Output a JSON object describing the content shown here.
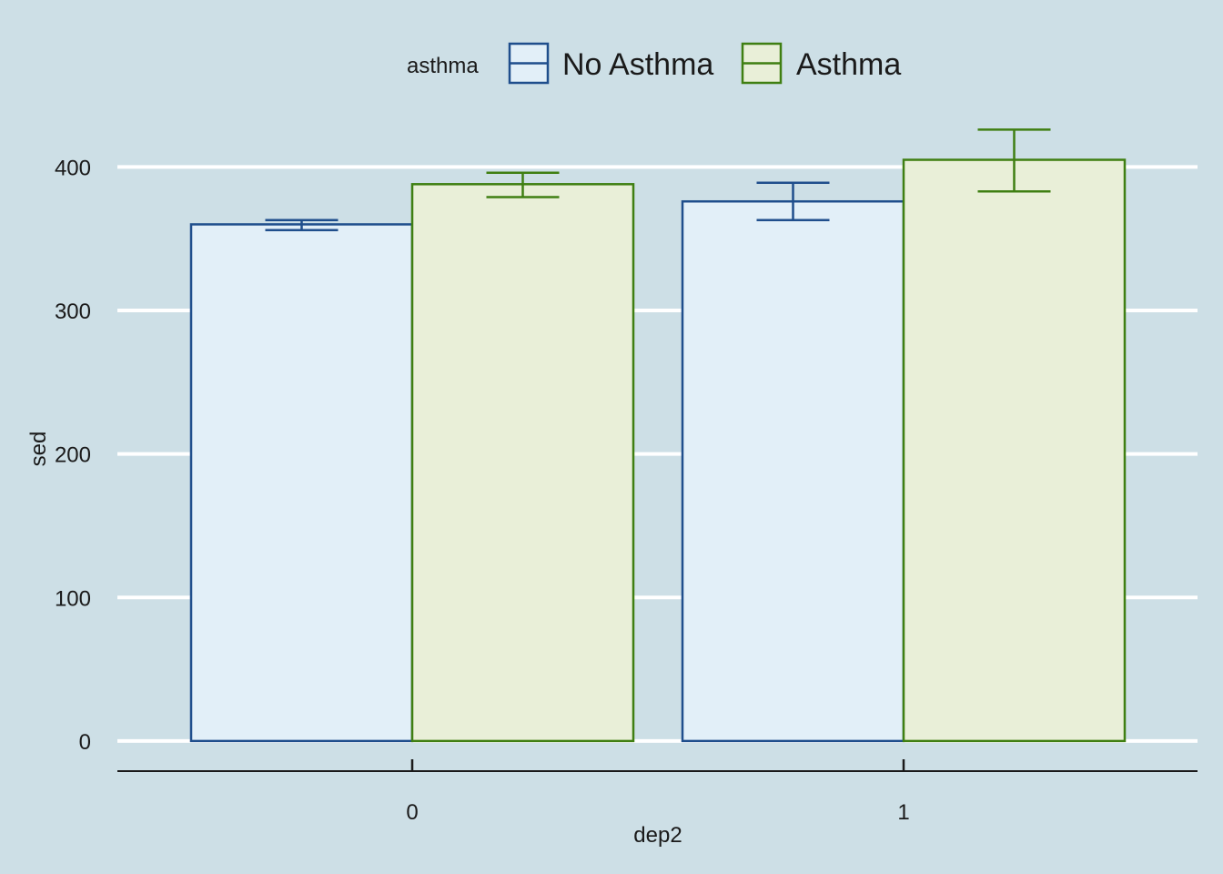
{
  "colors": {
    "background": "#cddfe6",
    "gridline": "#ffffff",
    "axis": "#1a1a1a",
    "no_asthma_stroke": "#1f4e8c",
    "no_asthma_fill": "#e2eff8",
    "asthma_stroke": "#3f7f12",
    "asthma_fill": "#e9efd8"
  },
  "legend": {
    "title": "asthma",
    "items": [
      "No Asthma",
      "Asthma"
    ]
  },
  "chart_data": {
    "type": "bar",
    "title": "",
    "xlabel": "dep2",
    "ylabel": "sed",
    "categories": [
      "0",
      "1"
    ],
    "ylim": [
      -21,
      425
    ],
    "yticks": [
      0,
      100,
      200,
      300,
      400
    ],
    "grid": true,
    "legend_position": "top",
    "series": [
      {
        "name": "No Asthma",
        "values": [
          360,
          376
        ],
        "err_low": [
          356,
          363
        ],
        "err_high": [
          363,
          389
        ]
      },
      {
        "name": "Asthma",
        "values": [
          388,
          405
        ],
        "err_low": [
          379,
          383
        ],
        "err_high": [
          396,
          426
        ]
      }
    ]
  }
}
